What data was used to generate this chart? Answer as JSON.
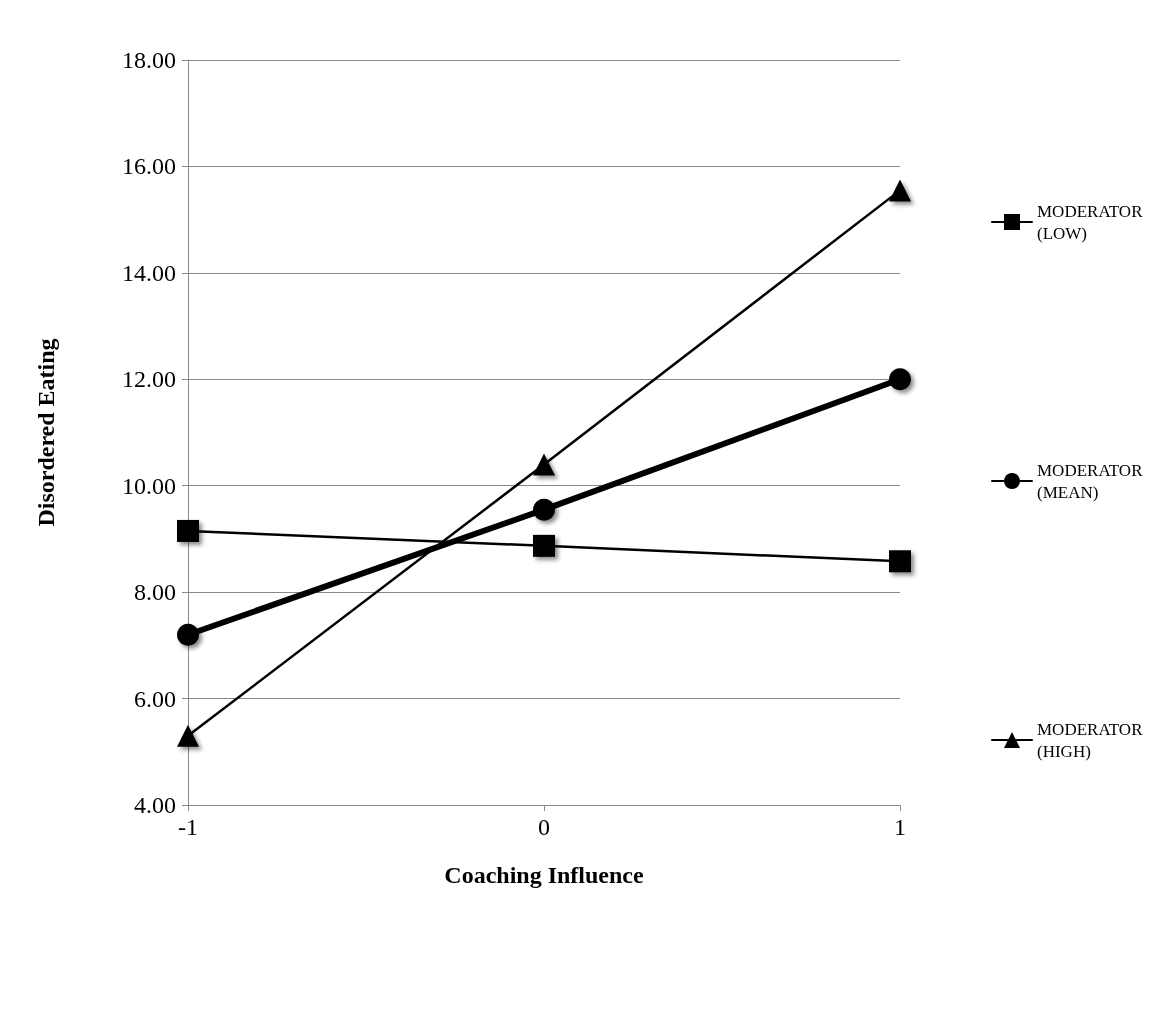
{
  "chart_data": {
    "type": "line",
    "xlabel": "Coaching Influence",
    "ylabel": "Disordered Eating",
    "categories": [
      "-1",
      "0",
      "1"
    ],
    "series": [
      {
        "name": "MODERATOR (LOW)",
        "color": "#000000",
        "marker": "square",
        "values": [
          9.15,
          8.87,
          8.58
        ]
      },
      {
        "name": "MODERATOR (MEAN)",
        "color": "#000000",
        "marker": "circle",
        "values": [
          7.2,
          9.55,
          12.0
        ]
      },
      {
        "name": "MODERATOR (HIGH)",
        "color": "#000000",
        "marker": "triangle",
        "values": [
          5.3,
          10.4,
          15.55
        ]
      }
    ],
    "ylim": [
      4,
      18
    ],
    "yticks": [
      {
        "value": 4,
        "label": "4.00"
      },
      {
        "value": 6,
        "label": "6.00"
      },
      {
        "value": 8,
        "label": "8.00"
      },
      {
        "value": 10,
        "label": "10.00"
      },
      {
        "value": 12,
        "label": "12.00"
      },
      {
        "value": 14,
        "label": "14.00"
      },
      {
        "value": 16,
        "label": "16.00"
      },
      {
        "value": 18,
        "label": "18.00"
      }
    ],
    "grid": "y",
    "legend": "right",
    "line_style": "solid"
  }
}
